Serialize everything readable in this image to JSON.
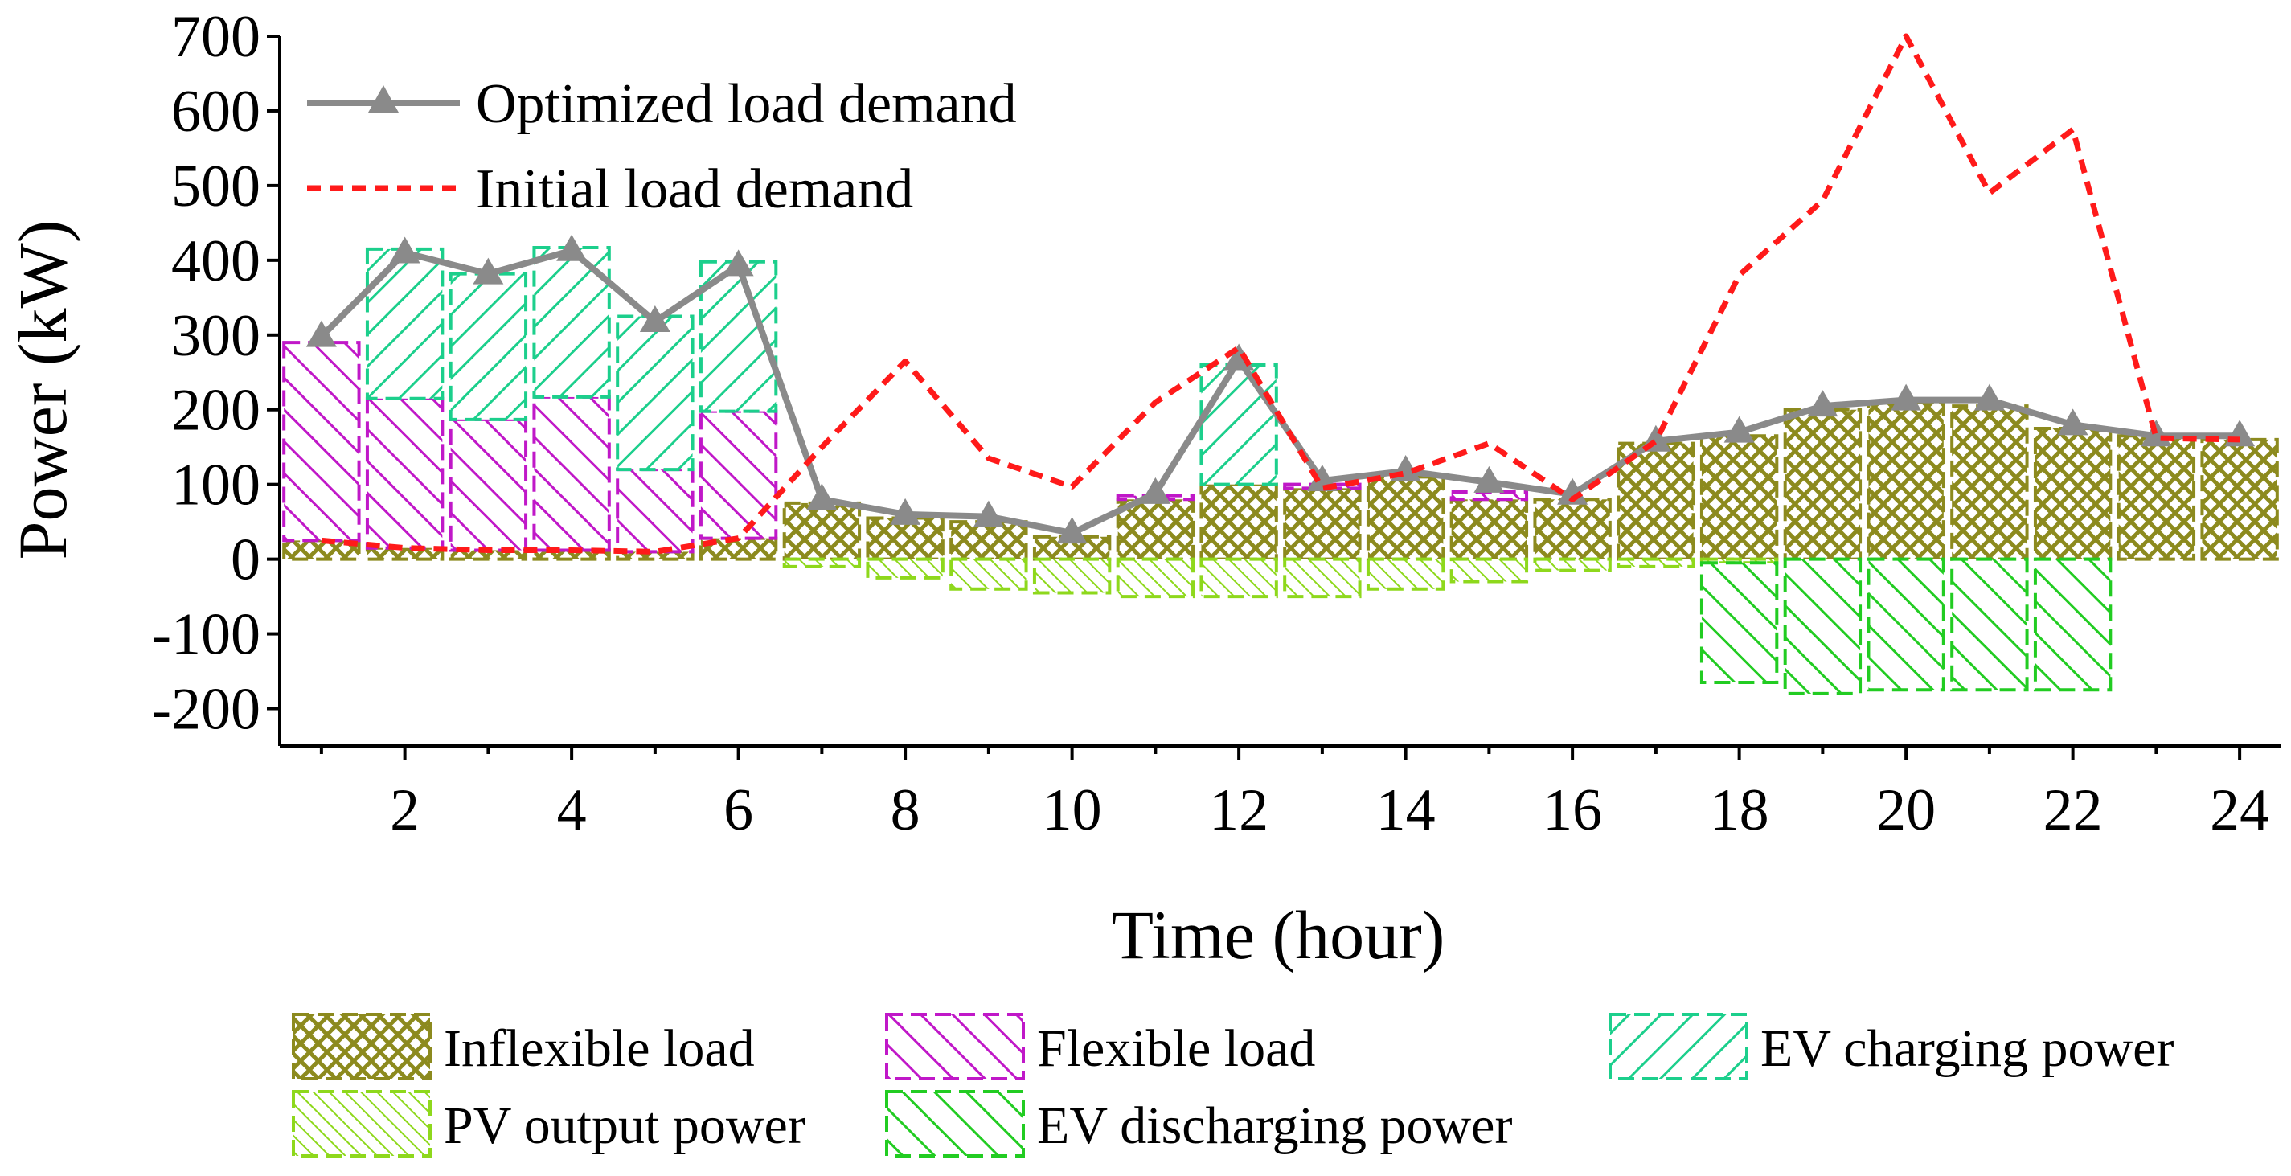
{
  "chart_data": {
    "type": "bar",
    "title": "",
    "xlabel": "Time (hour)",
    "ylabel": "Power (kW)",
    "xlim": [
      0.5,
      24.5
    ],
    "ylim": [
      -250,
      700
    ],
    "x_ticks": [
      2,
      4,
      6,
      8,
      10,
      12,
      14,
      16,
      18,
      20,
      22,
      24
    ],
    "y_ticks": [
      -200,
      -100,
      0,
      100,
      200,
      300,
      400,
      500,
      600,
      700
    ],
    "x": [
      1,
      2,
      3,
      4,
      5,
      6,
      7,
      8,
      9,
      10,
      11,
      12,
      13,
      14,
      15,
      16,
      17,
      18,
      19,
      20,
      21,
      22,
      23,
      24
    ],
    "stacked_series": [
      {
        "name": "Inflexible load",
        "key": "inflexible",
        "color": "#8c8a1e",
        "values": [
          25,
          15,
          12,
          12,
          10,
          28,
          75,
          55,
          50,
          30,
          80,
          100,
          95,
          110,
          80,
          80,
          155,
          165,
          200,
          210,
          205,
          175,
          165,
          160
        ]
      },
      {
        "name": "Flexible load",
        "key": "flexible",
        "color": "#c018c8",
        "values": [
          265,
          200,
          175,
          205,
          110,
          170,
          0,
          0,
          0,
          0,
          5,
          0,
          5,
          0,
          10,
          0,
          0,
          0,
          0,
          0,
          0,
          0,
          0,
          0
        ]
      },
      {
        "name": "EV charging power",
        "key": "evcharge",
        "color": "#1ccf8c",
        "values": [
          0,
          200,
          195,
          200,
          205,
          200,
          0,
          0,
          0,
          0,
          0,
          160,
          0,
          0,
          0,
          0,
          0,
          0,
          0,
          0,
          0,
          0,
          0,
          0
        ]
      },
      {
        "name": "PV output power",
        "key": "pv",
        "color": "#8ed81c",
        "values": [
          0,
          0,
          0,
          0,
          0,
          0,
          -10,
          -25,
          -40,
          -45,
          -50,
          -50,
          -50,
          -40,
          -30,
          -15,
          -10,
          -5,
          0,
          0,
          0,
          0,
          0,
          0
        ]
      },
      {
        "name": "EV discharging power",
        "key": "evdischarge",
        "color": "#22cc22",
        "values": [
          0,
          0,
          0,
          0,
          0,
          0,
          0,
          0,
          0,
          0,
          0,
          0,
          0,
          0,
          0,
          0,
          0,
          -160,
          -180,
          -175,
          -175,
          -175,
          0,
          0
        ]
      }
    ],
    "line_series": [
      {
        "name": "Optimized load demand",
        "key": "optimized",
        "color": "#8a8a8a",
        "marker": "triangle",
        "values": [
          298,
          410,
          382,
          413,
          318,
          393,
          80,
          60,
          57,
          35,
          88,
          267,
          105,
          118,
          103,
          87,
          158,
          170,
          205,
          213,
          213,
          180,
          165,
          165
        ]
      },
      {
        "name": "Initial load demand",
        "key": "initial",
        "color": "#ff1a1a",
        "style": "dashed",
        "values": [
          25,
          15,
          12,
          12,
          10,
          28,
          150,
          265,
          135,
          97,
          210,
          283,
          95,
          115,
          155,
          80,
          158,
          380,
          480,
          700,
          490,
          575,
          162,
          160
        ]
      }
    ],
    "legend_position": "top-left and bottom"
  },
  "legend": {
    "line_labels": [
      "Optimized load demand",
      "Initial load demand"
    ],
    "bar_labels": [
      "Inflexible load",
      "Flexible load",
      "EV charging power",
      "PV output power",
      "EV discharging power"
    ]
  }
}
